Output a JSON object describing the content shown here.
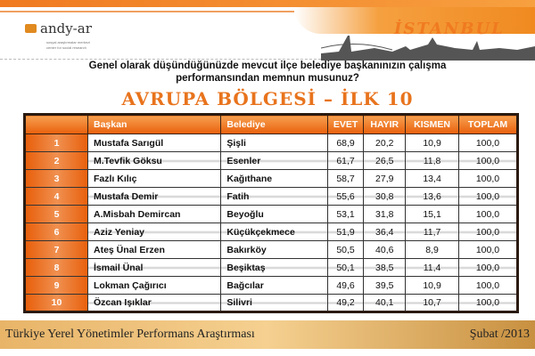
{
  "logo": {
    "name": "andy-ar",
    "subtitle_line1": "sosyal araştırmalar merkezi",
    "subtitle_line2": "center for social research"
  },
  "banner": {
    "city": "İSTANBUL"
  },
  "question": {
    "line1": "Genel olarak düşündüğünüzde mevcut ilçe belediye başkanınızın çalışma",
    "line2": "performansından memnun musunuz?"
  },
  "title": "AVRUPA  BÖLGESİ – İLK 10",
  "table": {
    "headers": [
      "",
      "Başkan",
      "Belediye",
      "EVET",
      "HAYIR",
      "KISMEN",
      "TOPLAM"
    ],
    "rows": [
      [
        "1",
        "Mustafa Sarıgül",
        "Şişli",
        "68,9",
        "20,2",
        "10,9",
        "100,0"
      ],
      [
        "2",
        "M.Tevfik Göksu",
        "Esenler",
        "61,7",
        "26,5",
        "11,8",
        "100,0"
      ],
      [
        "3",
        "Fazlı Kılıç",
        "Kağıthane",
        "58,7",
        "27,9",
        "13,4",
        "100,0"
      ],
      [
        "4",
        "Mustafa Demir",
        "Fatih",
        "55,6",
        "30,8",
        "13,6",
        "100,0"
      ],
      [
        "5",
        "A.Misbah Demircan",
        "Beyoğlu",
        "53,1",
        "31,8",
        "15,1",
        "100,0"
      ],
      [
        "6",
        "Aziz Yeniay",
        "Küçükçekmece",
        "51,9",
        "36,4",
        "11,7",
        "100,0"
      ],
      [
        "7",
        "Ateş Ünal Erzen",
        "Bakırköy",
        "50,5",
        "40,6",
        "8,9",
        "100,0"
      ],
      [
        "8",
        "İsmail Ünal",
        "Beşiktaş",
        "50,1",
        "38,5",
        "11,4",
        "100,0"
      ],
      [
        "9",
        "Lokman Çağırıcı",
        "Bağcılar",
        "49,6",
        "39,5",
        "10,9",
        "100,0"
      ],
      [
        "10",
        "Özcan Işıklar",
        "Silivri",
        "49,2",
        "40,1",
        "10,7",
        "100,0"
      ]
    ]
  },
  "footer": {
    "left": "Türkiye Yerel Yönetimler Performans Araştırması",
    "right": "Şubat /2013"
  },
  "colors": {
    "accent": "#e8731c",
    "header_bg": "#e8600c"
  }
}
